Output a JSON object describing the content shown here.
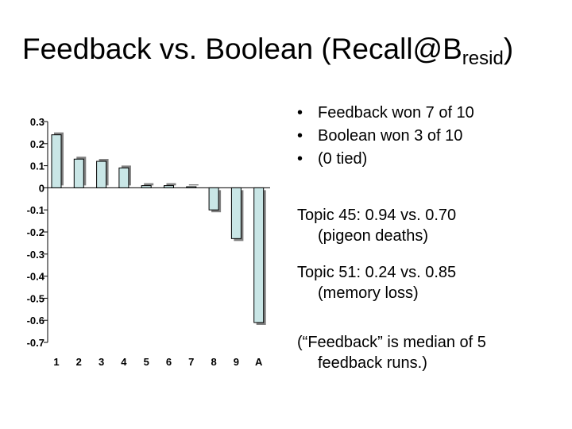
{
  "slide": {
    "title_main": "Feedback vs. Boolean (Recall@B",
    "title_sub": "resid",
    "title_end": ")"
  },
  "bullets": [
    "Feedback won 7 of 10",
    "Boolean won 3 of 10",
    "(0 tied)"
  ],
  "bullet_symbol": "•",
  "notes": [
    {
      "line1": "Topic 45: 0.94 vs. 0.70",
      "line2": "(pigeon deaths)"
    },
    {
      "line1": "Topic 51: 0.24 vs. 0.85",
      "line2": "(memory loss)"
    },
    {
      "line1": "(“Feedback” is median of 5",
      "line2": "feedback runs.)"
    }
  ],
  "chart_data": {
    "type": "bar",
    "categories": [
      "1",
      "2",
      "3",
      "4",
      "5",
      "6",
      "7",
      "8",
      "9",
      "A"
    ],
    "values": [
      0.24,
      0.13,
      0.12,
      0.09,
      0.01,
      0.01,
      0.005,
      -0.1,
      -0.23,
      -0.61
    ],
    "ylim": [
      -0.7,
      0.3
    ],
    "yticks": [
      0.3,
      0.2,
      0.1,
      0,
      -0.1,
      -0.2,
      -0.3,
      -0.4,
      -0.5,
      -0.6,
      -0.7
    ],
    "ytick_labels": [
      "0.3",
      "0.2",
      "0.1",
      "0",
      "-0.1",
      "-0.2",
      "-0.3",
      "-0.4",
      "-0.5",
      "-0.6",
      "-0.7"
    ],
    "grid": false,
    "legend": "none",
    "bar_color": "#c9e6e6",
    "bar_shadow": "#808080"
  }
}
